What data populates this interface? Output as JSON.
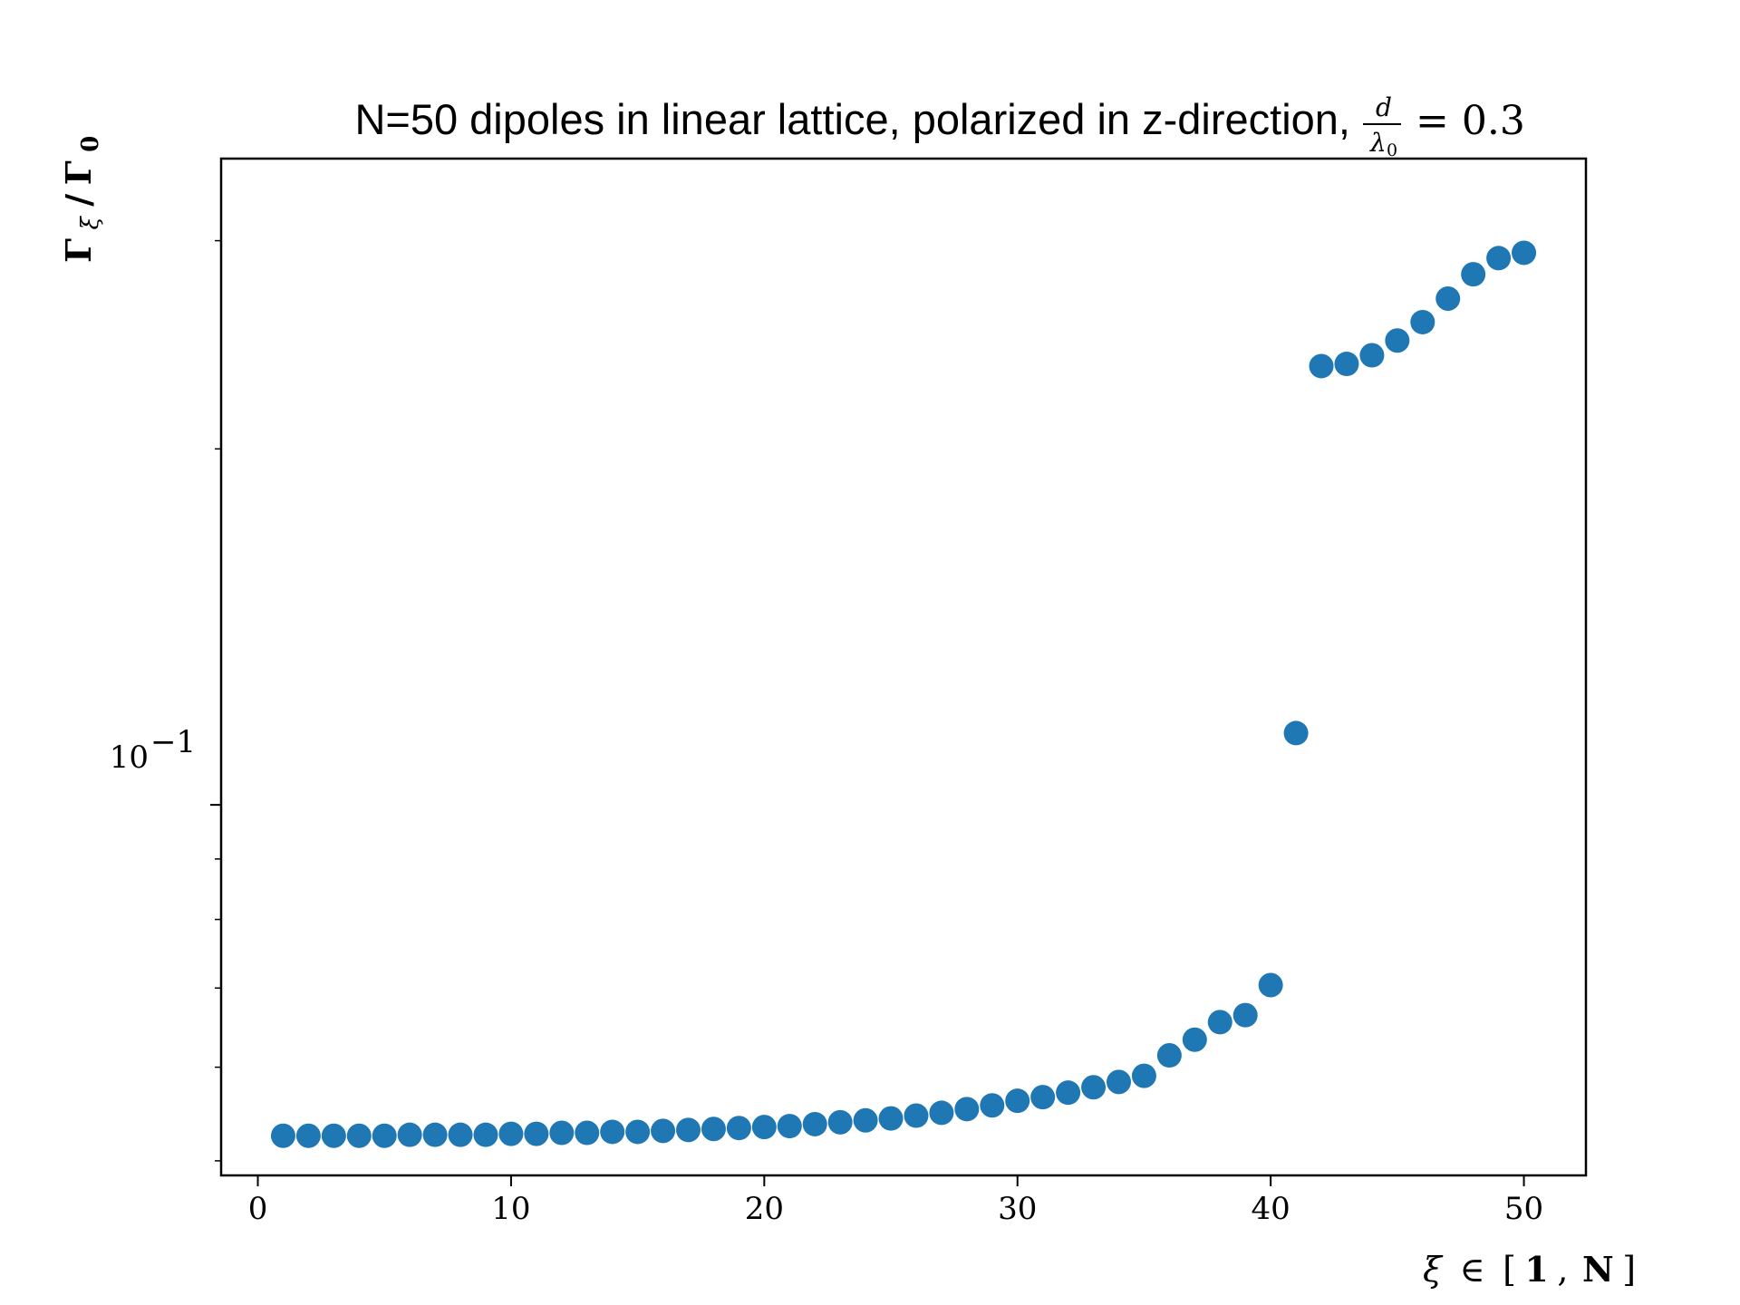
{
  "chart_data": {
    "type": "scatter",
    "title": {
      "text": "N=50 dipoles in linear lattice, polarized in z-direction,",
      "frac_num": "d",
      "frac_den": "λ",
      "frac_den_sub": "0",
      "eq": "= 0.3"
    },
    "xlabel": {
      "xi": "ξ",
      "in": "∈",
      "bracket_open": "[",
      "one": "1",
      "comma": ",",
      "n": "N",
      "bracket_close": "]"
    },
    "ylabel": {
      "gamma1": "Γ",
      "sub1": "ξ",
      "slash": "/",
      "gamma2": "Γ",
      "sub2": "0"
    },
    "x_ticks": [
      "0",
      "10",
      "20",
      "30",
      "40",
      "50"
    ],
    "y_major_tick": {
      "base": "10",
      "exp": "−1"
    },
    "xlim": [
      -1.45,
      52.45
    ],
    "ylim": [
      0.0486,
      0.352
    ],
    "yscale": "log",
    "grid": false,
    "marker_color": "#1f77b4",
    "x": [
      1,
      2,
      3,
      4,
      5,
      6,
      7,
      8,
      9,
      10,
      11,
      12,
      13,
      14,
      15,
      16,
      17,
      18,
      19,
      20,
      21,
      22,
      23,
      24,
      25,
      26,
      27,
      28,
      29,
      30,
      31,
      32,
      33,
      34,
      35,
      36,
      37,
      38,
      39,
      40,
      41,
      42,
      43,
      44,
      45,
      46,
      47,
      48,
      49,
      50
    ],
    "y": [
      0.0525,
      0.0525,
      0.0525,
      0.0525,
      0.0525,
      0.0526,
      0.0526,
      0.0526,
      0.0526,
      0.0527,
      0.0527,
      0.0528,
      0.0528,
      0.0529,
      0.0529,
      0.053,
      0.0531,
      0.0532,
      0.0533,
      0.0534,
      0.0535,
      0.0537,
      0.0539,
      0.0541,
      0.0543,
      0.0546,
      0.0549,
      0.0553,
      0.0557,
      0.0562,
      0.0566,
      0.0571,
      0.0577,
      0.0583,
      0.059,
      0.0614,
      0.0633,
      0.0655,
      0.0664,
      0.0704,
      0.115,
      0.235,
      0.236,
      0.24,
      0.247,
      0.256,
      0.268,
      0.281,
      0.29,
      0.293
    ]
  }
}
